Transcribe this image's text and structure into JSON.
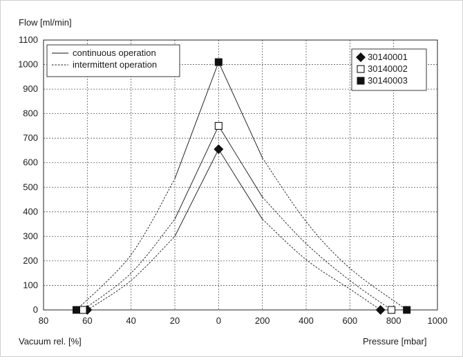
{
  "chart_data": {
    "type": "line",
    "ylabel": "Flow [ml/min]",
    "xlabel_left": "Vacuum rel. [%]",
    "xlabel_right": "Pressure [mbar]",
    "ylim": [
      0,
      1100
    ],
    "yticks": [
      "0",
      "100",
      "200",
      "300",
      "400",
      "500",
      "600",
      "700",
      "800",
      "900",
      "1000",
      "1100"
    ],
    "xticks_vacuum": [
      "80",
      "60",
      "40",
      "20",
      "0"
    ],
    "xticks_pressure": [
      "200",
      "400",
      "600",
      "800",
      "1000"
    ],
    "grid": true,
    "line_styles": [
      {
        "label": "continuous operation",
        "dash": false
      },
      {
        "label": "intermittent operation",
        "dash": true
      }
    ],
    "legend_placement_styles": "top-left",
    "legend_placement_series": "top-right",
    "series": [
      {
        "name": "30140001",
        "marker": "diamond",
        "vacuum_pct_points": [
          [
            60,
            0
          ],
          [
            40,
            120
          ],
          [
            20,
            300
          ],
          [
            0,
            655
          ]
        ],
        "pressure_mbar_points": [
          [
            0,
            655
          ],
          [
            200,
            370
          ],
          [
            400,
            205
          ],
          [
            600,
            85
          ],
          [
            740,
            0
          ]
        ],
        "continuous_vacuum_to_pct": 20,
        "continuous_pressure_to_mbar": 200
      },
      {
        "name": "30140002",
        "marker": "square-open",
        "vacuum_pct_points": [
          [
            62,
            0
          ],
          [
            40,
            150
          ],
          [
            20,
            370
          ],
          [
            0,
            750
          ]
        ],
        "pressure_mbar_points": [
          [
            0,
            750
          ],
          [
            200,
            460
          ],
          [
            400,
            270
          ],
          [
            600,
            120
          ],
          [
            790,
            0
          ]
        ],
        "continuous_vacuum_to_pct": 20,
        "continuous_pressure_to_mbar": 200
      },
      {
        "name": "30140003",
        "marker": "square-filled",
        "vacuum_pct_points": [
          [
            65,
            0
          ],
          [
            40,
            225
          ],
          [
            20,
            535
          ],
          [
            0,
            1010
          ]
        ],
        "pressure_mbar_points": [
          [
            0,
            1010
          ],
          [
            200,
            620
          ],
          [
            400,
            360
          ],
          [
            600,
            170
          ],
          [
            860,
            0
          ]
        ],
        "continuous_vacuum_to_pct": 20,
        "continuous_pressure_to_mbar": 200
      }
    ]
  }
}
